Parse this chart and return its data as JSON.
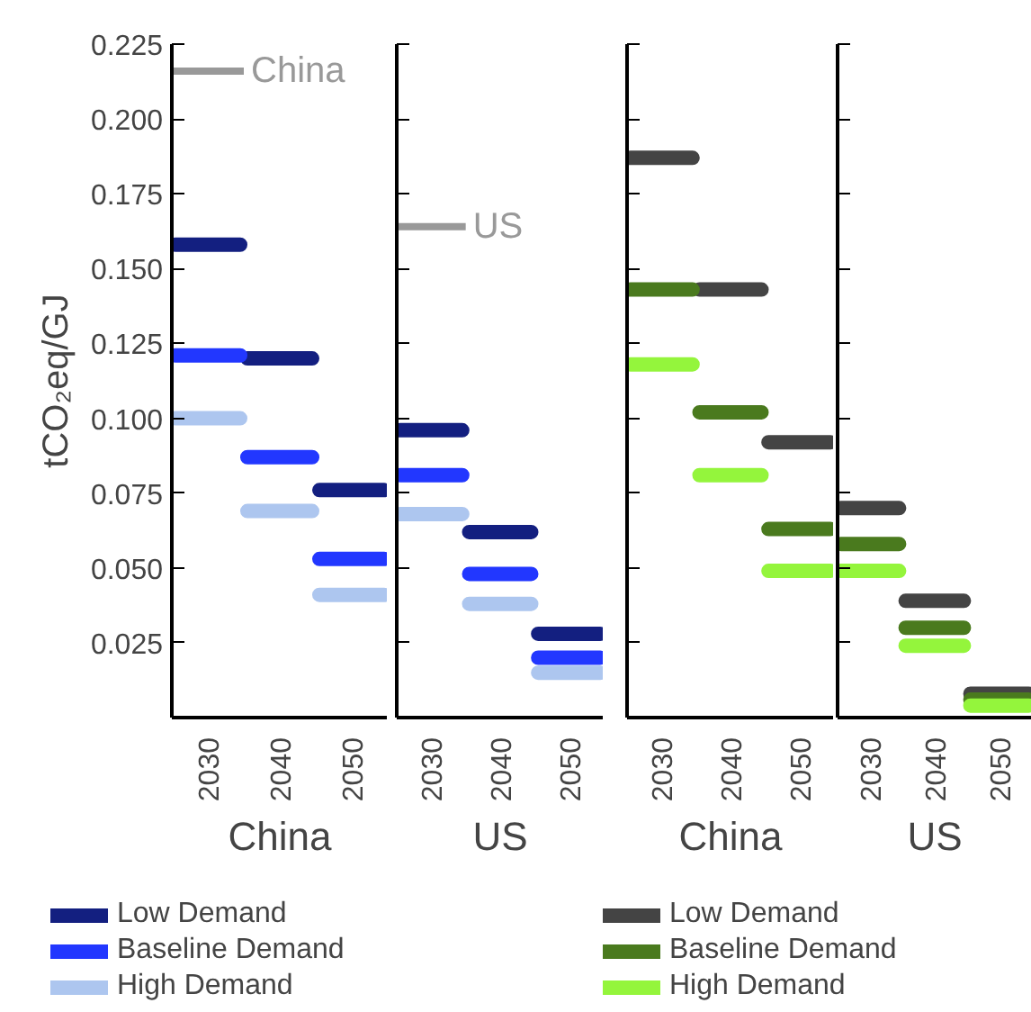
{
  "chart_data": [
    {
      "type": "line",
      "xlabel": "China",
      "ylabel": "tCO₂eq/GJ",
      "x": [
        2025.5,
        2034.5,
        2035,
        2035.5,
        2044.5,
        2045,
        2045.5,
        2054.5
      ],
      "xlim": [
        2025,
        2055
      ],
      "xticks": [
        2030,
        2040,
        2050
      ],
      "ylim": [
        0,
        0.225
      ],
      "yticks": [
        {
          "value": 0.025,
          "label": "0.025"
        },
        {
          "value": 0.05,
          "label": "0.050"
        },
        {
          "value": 0.075,
          "label": "0.075"
        },
        {
          "value": 0.1,
          "label": "0.100"
        },
        {
          "value": 0.125,
          "label": "0.125"
        },
        {
          "value": 0.15,
          "label": "0.150"
        },
        {
          "value": 0.175,
          "label": "0.175"
        },
        {
          "value": 0.2,
          "label": "0.200"
        },
        {
          "value": 0.225,
          "label": "0.225"
        }
      ],
      "legend": "bottom",
      "ref_lines": [
        {
          "axis": "y",
          "value": 0.216,
          "label": "China",
          "color": "#999999"
        }
      ],
      "series": [
        {
          "name": "Low Demand",
          "color": "#131f80",
          "values": [
            0.158,
            0.158,
            null,
            0.12,
            0.12,
            null,
            0.076,
            0.076
          ]
        },
        {
          "name": "Baseline Demand",
          "color": "#2237ff",
          "values": [
            0.121,
            0.121,
            null,
            0.087,
            0.087,
            null,
            0.053,
            0.053
          ]
        },
        {
          "name": "High Demand",
          "color": "#adc6ef",
          "values": [
            0.1,
            0.1,
            null,
            0.069,
            0.069,
            null,
            0.041,
            0.041
          ]
        }
      ]
    },
    {
      "type": "line",
      "xlabel": "US",
      "x": [
        2025.5,
        2034.5,
        2035,
        2035.5,
        2044.5,
        2045,
        2045.5,
        2054.5
      ],
      "xlim": [
        2025,
        2055
      ],
      "xticks": [
        2030,
        2040,
        2050
      ],
      "ylim": [
        0,
        0.225
      ],
      "yticks": [
        0.025,
        0.05,
        0.075,
        0.1,
        0.125,
        0.15,
        0.175,
        0.2,
        0.225
      ],
      "tick_labels": "x",
      "ref_lines": [
        {
          "axis": "y",
          "value": 0.164,
          "label": "US",
          "color": "#999999"
        }
      ],
      "series": [
        {
          "color": "#131f80",
          "values": [
            0.096,
            0.096,
            null,
            0.062,
            0.062,
            null,
            0.028,
            0.028
          ]
        },
        {
          "color": "#2237ff",
          "values": [
            0.081,
            0.081,
            null,
            0.048,
            0.048,
            null,
            0.02,
            0.02
          ]
        },
        {
          "color": "#adc6ef",
          "values": [
            0.068,
            0.068,
            null,
            0.038,
            0.038,
            null,
            0.015,
            0.015
          ]
        }
      ]
    },
    {
      "type": "line",
      "xlabel": "China",
      "x": [
        2025.5,
        2034.5,
        2035,
        2035.5,
        2044.5,
        2045,
        2045.5,
        2054.5
      ],
      "xlim": [
        2025,
        2055
      ],
      "xticks": [
        2030,
        2040,
        2050
      ],
      "ylim": [
        0,
        0.225
      ],
      "yticks": [
        0.025,
        0.05,
        0.075,
        0.1,
        0.125,
        0.15,
        0.175,
        0.2,
        0.225
      ],
      "tick_labels": "x",
      "legend": "bottom",
      "series": [
        {
          "name": "Low Demand",
          "color": "#444444",
          "values": [
            0.187,
            0.187,
            null,
            0.143,
            0.143,
            null,
            0.092,
            0.092
          ]
        },
        {
          "name": "Baseline Demand",
          "color": "#4a7a1e",
          "values": [
            0.143,
            0.143,
            null,
            0.102,
            0.102,
            null,
            0.063,
            0.063
          ]
        },
        {
          "name": "High Demand",
          "color": "#94f53c",
          "values": [
            0.118,
            0.118,
            null,
            0.081,
            0.081,
            null,
            0.049,
            0.049
          ]
        }
      ]
    },
    {
      "type": "line",
      "xlabel": "US",
      "x": [
        2025.5,
        2034.5,
        2035,
        2035.5,
        2044.5,
        2045,
        2045.5,
        2054.5
      ],
      "xlim": [
        2025,
        2055
      ],
      "xticks": [
        2030,
        2040,
        2050
      ],
      "ylim": [
        0,
        0.225
      ],
      "yticks": [
        0.025,
        0.05,
        0.075,
        0.1,
        0.125,
        0.15,
        0.175,
        0.2,
        0.225
      ],
      "tick_labels": "x",
      "series": [
        {
          "color": "#444444",
          "values": [
            0.07,
            0.07,
            null,
            0.039,
            0.039,
            null,
            0.008,
            0.008
          ]
        },
        {
          "color": "#4a7a1e",
          "values": [
            0.058,
            0.058,
            null,
            0.03,
            0.03,
            null,
            0.006,
            0.006
          ]
        },
        {
          "color": "#94f53c",
          "values": [
            0.049,
            0.049,
            null,
            0.024,
            0.024,
            null,
            0.004,
            0.004
          ]
        }
      ]
    }
  ]
}
